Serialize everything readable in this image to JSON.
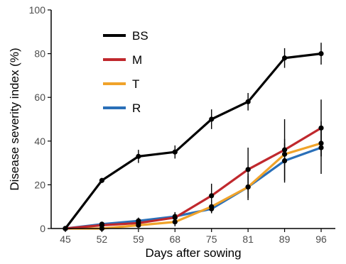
{
  "chart_data": {
    "type": "line",
    "xlabel": "Days after sowing",
    "ylabel": "Disease severity index (%)",
    "categories": [
      "45",
      "52",
      "59",
      "68",
      "75",
      "81",
      "89",
      "96"
    ],
    "ylim": [
      0,
      100
    ],
    "yticks": [
      0,
      20,
      40,
      60,
      80,
      100
    ],
    "grid": false,
    "legend_position": "top-left inside",
    "series": [
      {
        "name": "BS",
        "color": "#000000",
        "values": [
          0,
          22,
          33,
          35,
          50,
          58,
          78,
          80
        ],
        "error": [
          0,
          1,
          3,
          3,
          4.5,
          4,
          4.5,
          5
        ]
      },
      {
        "name": "M",
        "color": "#c0282d",
        "values": [
          0,
          1.5,
          2.5,
          5,
          15,
          27,
          36,
          46
        ],
        "error": [
          0,
          1,
          1,
          2,
          5.5,
          10,
          14,
          13
        ]
      },
      {
        "name": "T",
        "color": "#f0a32a",
        "values": [
          0,
          0,
          1.5,
          3,
          10,
          19,
          34,
          39
        ],
        "error": [
          0,
          1,
          1,
          2,
          3,
          5,
          5,
          6
        ]
      },
      {
        "name": "R",
        "color": "#2a6fb8",
        "values": [
          0,
          2,
          3.5,
          5.5,
          9,
          19,
          31,
          37
        ],
        "error": [
          0,
          1,
          1.5,
          2,
          2,
          6,
          10,
          12
        ]
      }
    ]
  }
}
